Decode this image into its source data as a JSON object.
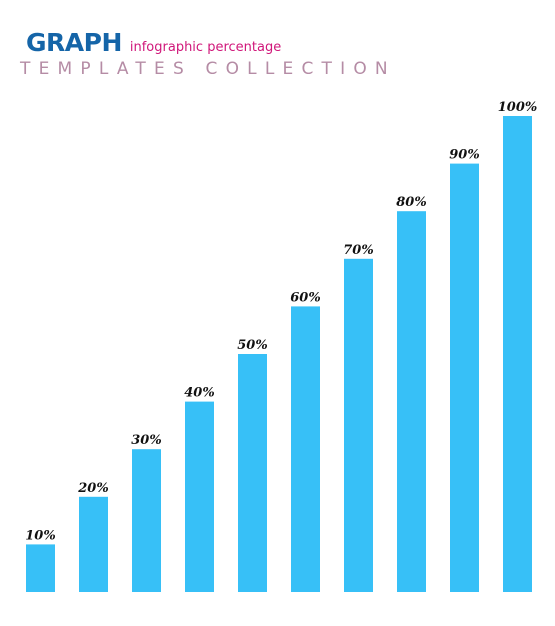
{
  "header": {
    "title": "GRAPH",
    "subtitle": "infographic percentage",
    "tagline": "TEMPLATES COLLECTION"
  },
  "colors": {
    "title": "#1565a8",
    "subtitle": "#d0177a",
    "tagline": "#b58ca5",
    "bar": "#37c0f7"
  },
  "chart_data": {
    "type": "bar",
    "values": [
      10,
      20,
      30,
      40,
      50,
      60,
      70,
      80,
      90,
      100
    ],
    "value_labels": [
      "10%",
      "20%",
      "30%",
      "40%",
      "50%",
      "60%",
      "70%",
      "80%",
      "90%",
      "100%"
    ],
    "ylim": [
      0,
      100
    ],
    "grid": false,
    "legend": "none"
  }
}
